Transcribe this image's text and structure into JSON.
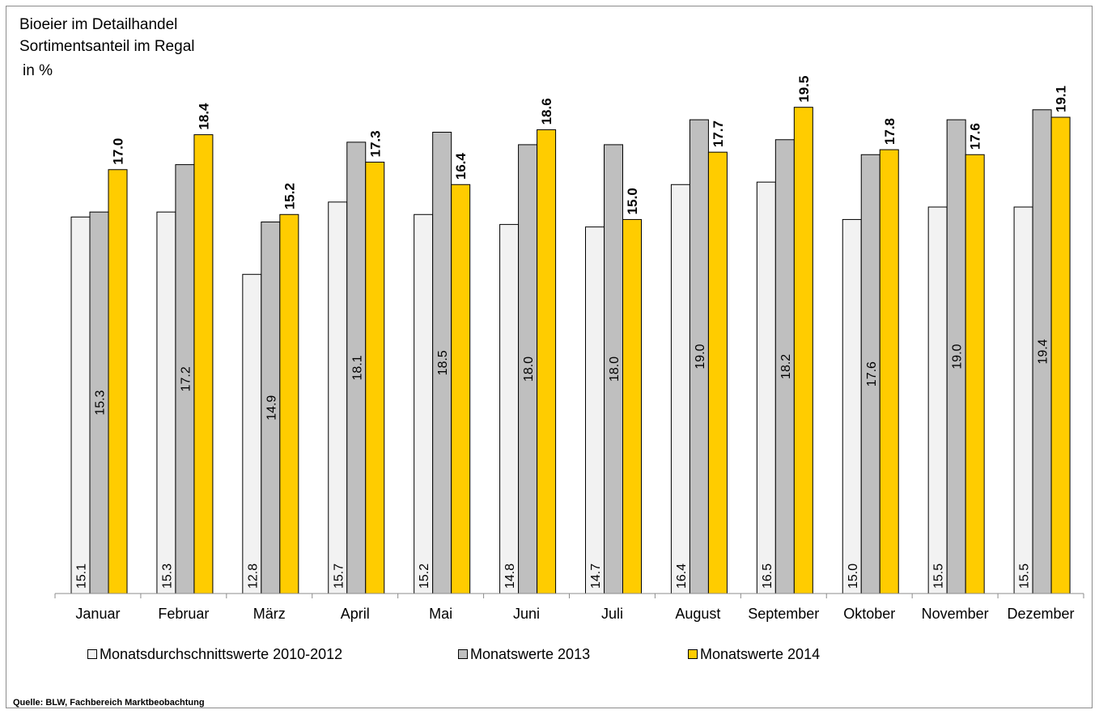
{
  "title": "Bioeier im Detailhandel",
  "subtitle": "Sortimentsanteil im Regal",
  "unit": "in %",
  "source": "Quelle: BLW, Fachbereich Marktbeobachtung",
  "colors": {
    "avg": "#f2f2f2",
    "y2013": "#bfbfbf",
    "y2014": "#ffcc00",
    "outline": "#000000"
  },
  "legend": [
    {
      "label": "Monatsdurchschnittswerte 2010-2012",
      "color": "#f2f2f2"
    },
    {
      "label": "Monatswerte 2013",
      "color": "#bfbfbf"
    },
    {
      "label": "Monatswerte 2014",
      "color": "#ffcc00"
    }
  ],
  "chart_data": {
    "type": "bar",
    "title": "Bioeier im Detailhandel",
    "subtitle": "Sortimentsanteil im Regal",
    "ylabel": "in %",
    "ylim": [
      0,
      20.3
    ],
    "categories": [
      "Januar",
      "Februar",
      "März",
      "April",
      "Mai",
      "Juni",
      "Juli",
      "August",
      "September",
      "Oktober",
      "November",
      "Dezember"
    ],
    "series": [
      {
        "name": "Monatsdurchschnittswerte 2010-2012",
        "values": [
          15.1,
          15.3,
          12.8,
          15.7,
          15.2,
          14.8,
          14.7,
          16.4,
          16.5,
          15.0,
          15.5,
          15.5
        ]
      },
      {
        "name": "Monatswerte 2013",
        "values": [
          15.3,
          17.2,
          14.9,
          18.1,
          18.5,
          18.0,
          18.0,
          19.0,
          18.2,
          17.6,
          19.0,
          19.4
        ]
      },
      {
        "name": "Monatswerte 2014",
        "values": [
          17.0,
          18.4,
          15.2,
          17.3,
          16.4,
          18.6,
          15.0,
          17.7,
          19.5,
          17.8,
          17.6,
          19.1
        ]
      }
    ],
    "grid": false,
    "legend_position": "bottom"
  }
}
